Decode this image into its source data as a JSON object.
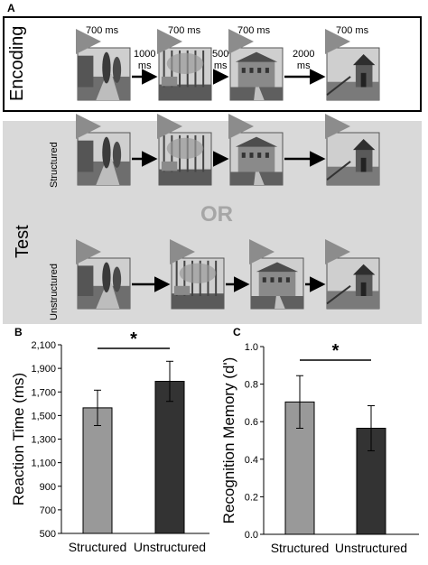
{
  "panels": {
    "a": "A",
    "b": "B",
    "c": "C"
  },
  "encoding": {
    "label": "Encoding",
    "durations": [
      "700 ms",
      "700 ms",
      "700 ms",
      "700 ms"
    ],
    "isi": [
      "1000\nms",
      "500\nms",
      "2000\nms"
    ]
  },
  "test": {
    "label": "Test",
    "or_label": "OR",
    "structured_label": "Structured",
    "unstructured_label": "Unstructured"
  },
  "scenes": [
    "garden-path",
    "wooded-yard",
    "stone-house",
    "wooden-shed"
  ],
  "colors": {
    "structured": "#999999",
    "unstructured": "#333333",
    "arrow_gray": "#8c8c8c"
  },
  "chart_data": [
    {
      "type": "bar",
      "categories": [
        "Structured",
        "Unstructured"
      ],
      "values": [
        1565,
        1790
      ],
      "errors": [
        150,
        170
      ],
      "ylabel": "Reaction Time (ms)",
      "ylim": [
        500,
        2100
      ],
      "yticks": [
        "500",
        "700",
        "900",
        "1,100",
        "1,300",
        "1,500",
        "1,700",
        "1,900",
        "2,100"
      ],
      "significance": "*"
    },
    {
      "type": "bar",
      "categories": [
        "Structured",
        "Unstructured"
      ],
      "values": [
        0.705,
        0.565
      ],
      "errors": [
        0.14,
        0.12
      ],
      "ylabel": "Recognition Memory (d')",
      "ylim": [
        0,
        1.0
      ],
      "yticks": [
        "0.0",
        "0.2",
        "0.4",
        "0.6",
        "0.8",
        "1.0"
      ],
      "significance": "*"
    }
  ]
}
